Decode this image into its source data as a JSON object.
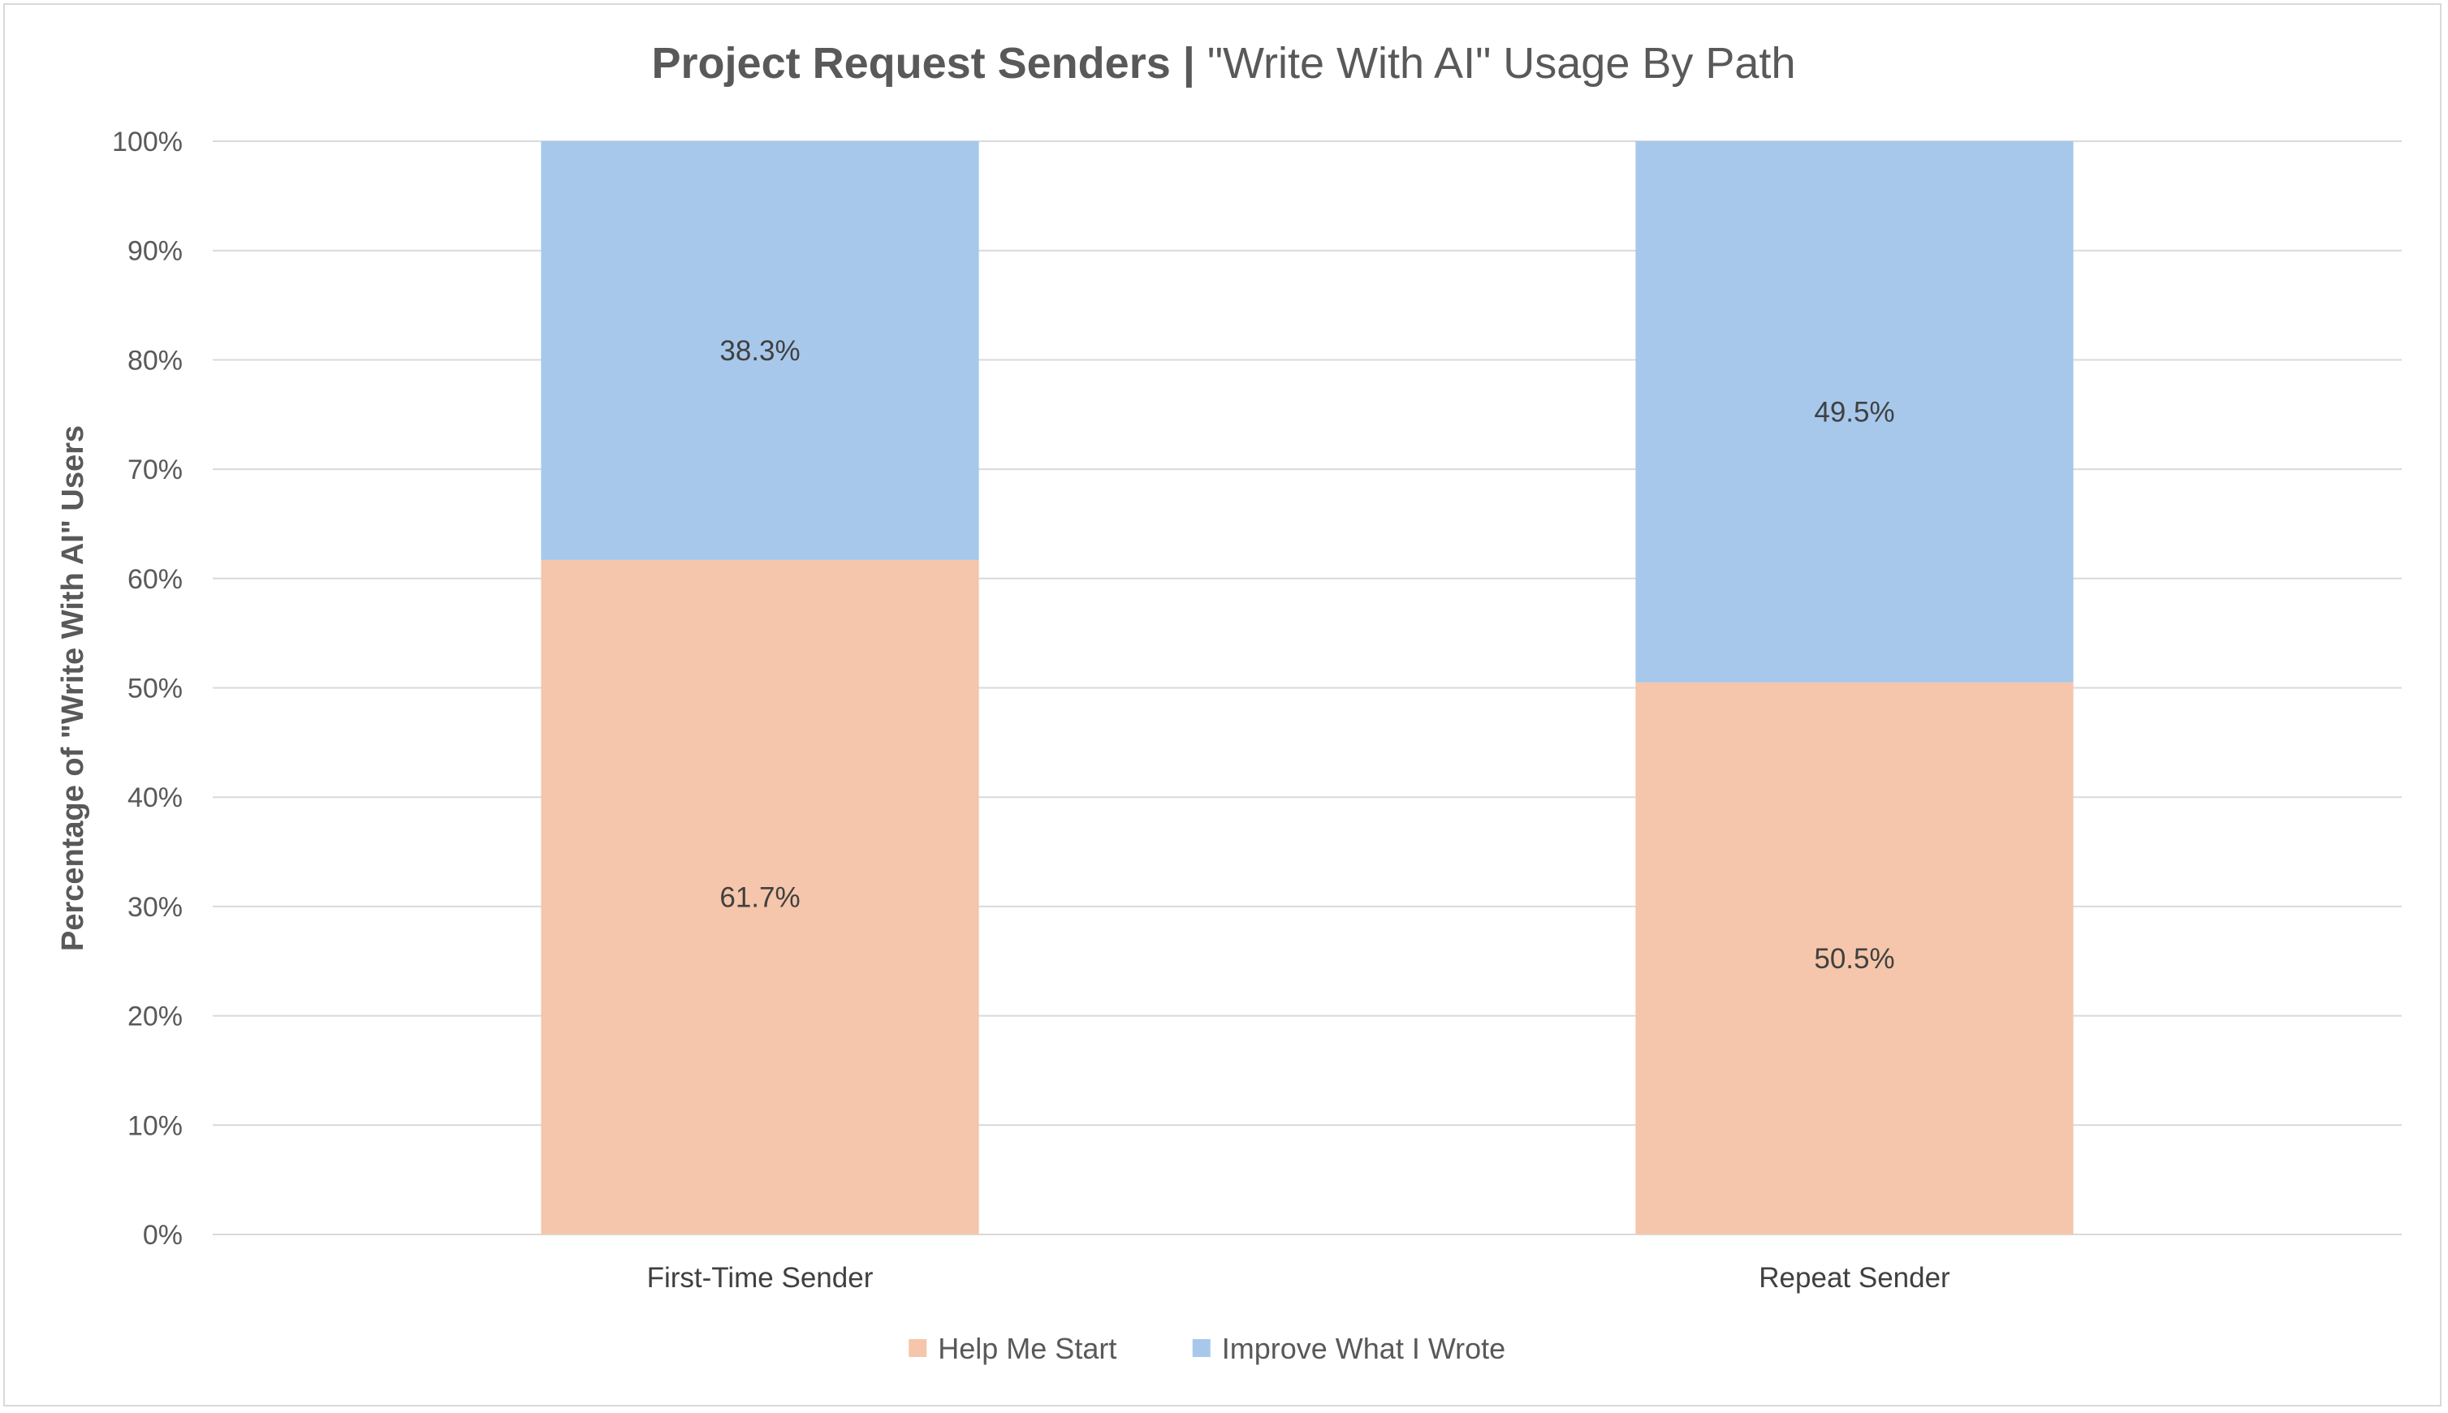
{
  "chart_data": {
    "type": "bar",
    "stacked": true,
    "title_bold": "Project Request Senders",
    "title_separator": " | ",
    "title_rest": "\"Write With AI\" Usage By Path",
    "xlabel": "",
    "ylabel": "Percentage of \"Write With AI\" Users",
    "ylim": [
      0,
      100
    ],
    "yticks": [
      "0%",
      "10%",
      "20%",
      "30%",
      "40%",
      "50%",
      "60%",
      "70%",
      "80%",
      "90%",
      "100%"
    ],
    "categories": [
      "First-Time Sender",
      "Repeat Sender"
    ],
    "series": [
      {
        "name": "Help Me Start",
        "values": [
          61.7,
          50.5
        ],
        "labels": [
          "61.7%",
          "50.5%"
        ],
        "color": "#f5c6ab"
      },
      {
        "name": "Improve What I Wrote",
        "values": [
          38.3,
          49.5
        ],
        "labels": [
          "38.3%",
          "49.5%"
        ],
        "color": "#a7c8eb"
      }
    ],
    "grid": true,
    "legend_position": "bottom"
  }
}
